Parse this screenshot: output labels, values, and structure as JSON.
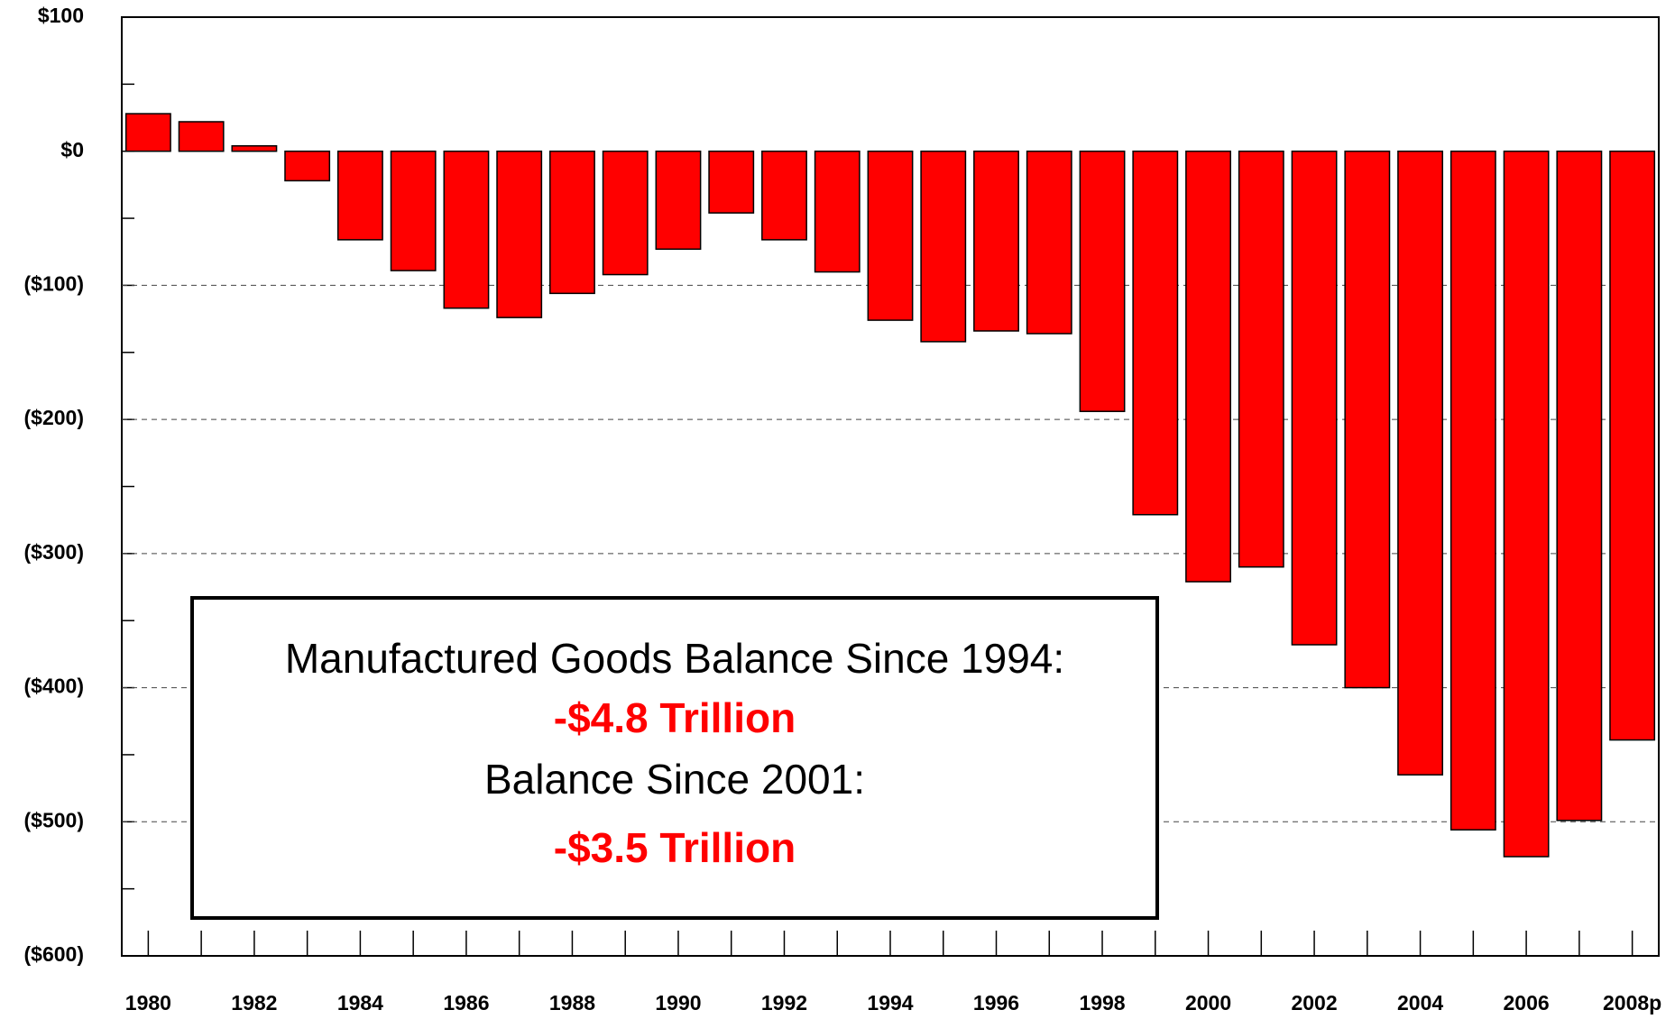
{
  "chart_data": {
    "type": "bar",
    "categories": [
      "1980",
      null,
      "1982",
      null,
      "1984",
      null,
      "1986",
      null,
      "1988",
      null,
      "1990",
      null,
      "1992",
      null,
      "1994",
      null,
      "1996",
      null,
      "1998",
      null,
      "2000",
      null,
      "2002",
      null,
      "2004",
      null,
      "2006",
      null,
      "2008p"
    ],
    "values": [
      28,
      22,
      4,
      -22,
      -66,
      -89,
      -117,
      -124,
      -106,
      -92,
      -73,
      -46,
      -66,
      -90,
      -126,
      -142,
      -134,
      -136,
      -194,
      -271,
      -321,
      -310,
      -368,
      -400,
      -465,
      -506,
      -526,
      -499,
      -439
    ],
    "color": "#ff0000",
    "ylim": [
      -600,
      100
    ],
    "yticks": [
      {
        "value": 100,
        "label": "$100"
      },
      {
        "value": 0,
        "label": "$0"
      },
      {
        "value": -100,
        "label": "($100)"
      },
      {
        "value": -200,
        "label": "($200)"
      },
      {
        "value": -300,
        "label": "($300)"
      },
      {
        "value": -400,
        "label": "($400)"
      },
      {
        "value": -500,
        "label": "($500)"
      },
      {
        "value": -600,
        "label": "($600)"
      }
    ],
    "yminorticks": [
      50,
      -50,
      -150,
      -250,
      -350,
      -450,
      -550
    ],
    "grid": true,
    "annotations": [
      "Manufactured Goods Balance Since 1994:",
      "-$4.8 Trillion",
      "Balance Since 2001:",
      "-$3.5 Trillion"
    ]
  }
}
